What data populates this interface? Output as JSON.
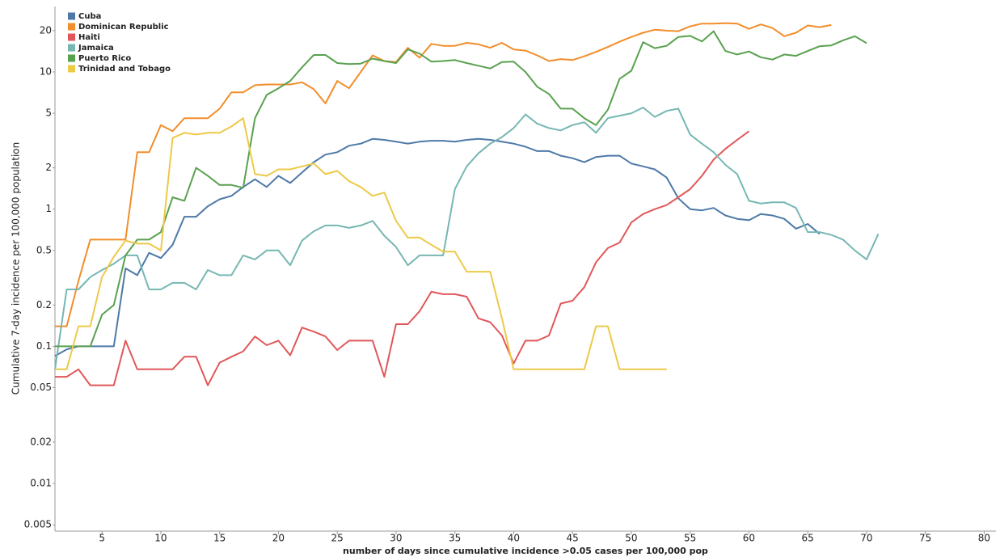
{
  "chart_data": {
    "type": "line",
    "y_label": "Cumulative 7-day incidence per 100,000 population",
    "x_label": "number of days since cumulative incidence >0.05 cases per 100,000 pop",
    "y_scale": "log",
    "grid": false,
    "legend": "top-left",
    "xlim": [
      1,
      81
    ],
    "xticks": [
      5,
      10,
      15,
      20,
      25,
      30,
      35,
      40,
      45,
      50,
      55,
      60,
      65,
      70,
      75,
      80
    ],
    "ylim": [
      0.0045,
      30
    ],
    "yticks": [
      0.005,
      0.01,
      0.02,
      0.05,
      0.1,
      0.2,
      0.5,
      1,
      2,
      5,
      10,
      20
    ],
    "x": [
      1,
      2,
      3,
      4,
      5,
      6,
      7,
      8,
      9,
      10,
      11,
      12,
      13,
      14,
      15,
      16,
      17,
      18,
      19,
      20,
      21,
      22,
      23,
      24,
      25,
      26,
      27,
      28,
      29,
      30,
      31,
      32,
      33,
      34,
      35,
      36,
      37,
      38,
      39,
      40,
      41,
      42,
      43,
      44,
      45,
      46,
      47,
      48,
      49,
      50,
      51,
      52,
      53,
      54,
      55,
      56,
      57,
      58,
      59,
      60,
      61,
      62,
      63,
      64,
      65,
      66,
      67,
      68,
      69,
      70,
      71
    ],
    "series": [
      {
        "name": "Cuba",
        "color": "#4e79a7",
        "values": [
          0.085,
          0.095,
          0.1,
          0.1,
          0.1,
          0.1,
          0.37,
          0.33,
          0.48,
          0.44,
          0.55,
          0.88,
          0.88,
          1.05,
          1.18,
          1.25,
          1.45,
          1.65,
          1.45,
          1.75,
          1.55,
          1.85,
          2.2,
          2.5,
          2.6,
          2.9,
          3.0,
          3.25,
          3.2,
          3.1,
          3.0,
          3.1,
          3.15,
          3.15,
          3.1,
          3.2,
          3.25,
          3.2,
          3.1,
          3.0,
          2.85,
          2.65,
          2.65,
          2.45,
          2.35,
          2.2,
          2.4,
          2.45,
          2.45,
          2.15,
          2.05,
          1.95,
          1.7,
          1.2,
          1.0,
          0.98,
          1.02,
          0.9,
          0.85,
          0.83,
          0.92,
          0.9,
          0.85,
          0.72,
          0.78,
          0.66,
          null,
          null,
          null,
          null,
          null
        ]
      },
      {
        "name": "Dominican Republic",
        "color": "#f28e2b",
        "values": [
          0.14,
          0.14,
          0.3,
          0.6,
          0.6,
          0.6,
          0.6,
          2.6,
          2.6,
          4.1,
          3.7,
          4.6,
          4.6,
          4.6,
          5.4,
          7.1,
          7.1,
          8.0,
          8.1,
          8.1,
          8.1,
          8.4,
          7.5,
          5.9,
          8.6,
          7.6,
          10.0,
          13.2,
          12.0,
          11.8,
          15.0,
          12.7,
          16.0,
          15.5,
          15.5,
          16.3,
          15.9,
          15.0,
          16.3,
          14.6,
          14.3,
          13.2,
          12.0,
          12.4,
          12.2,
          13.0,
          14.0,
          15.2,
          16.6,
          18.0,
          19.3,
          20.3,
          20.0,
          19.8,
          21.5,
          22.5,
          22.5,
          22.7,
          22.5,
          20.6,
          22.2,
          20.9,
          18.2,
          19.3,
          21.8,
          21.2,
          22.0,
          null,
          null,
          null,
          null
        ]
      },
      {
        "name": "Haiti",
        "color": "#e15759",
        "values": [
          0.06,
          0.06,
          0.068,
          0.052,
          0.052,
          0.052,
          0.11,
          0.068,
          0.068,
          0.068,
          0.068,
          0.084,
          0.084,
          0.052,
          0.076,
          0.084,
          0.092,
          0.118,
          0.102,
          0.11,
          0.086,
          0.137,
          0.128,
          0.118,
          0.094,
          0.11,
          0.11,
          0.11,
          0.06,
          0.145,
          0.145,
          0.18,
          0.25,
          0.24,
          0.24,
          0.23,
          0.16,
          0.15,
          0.12,
          0.075,
          0.11,
          0.11,
          0.12,
          0.205,
          0.215,
          0.27,
          0.41,
          0.52,
          0.57,
          0.8,
          0.92,
          1.0,
          1.07,
          1.22,
          1.4,
          1.75,
          2.3,
          2.75,
          3.2,
          3.7,
          null,
          null,
          null,
          null,
          null,
          null,
          null,
          null,
          null,
          null,
          null
        ]
      },
      {
        "name": "Jamaica",
        "color": "#76b7b2",
        "values": [
          0.068,
          0.26,
          0.26,
          0.32,
          0.36,
          0.4,
          0.46,
          0.46,
          0.26,
          0.26,
          0.29,
          0.29,
          0.26,
          0.36,
          0.33,
          0.33,
          0.46,
          0.43,
          0.5,
          0.5,
          0.39,
          0.59,
          0.69,
          0.76,
          0.76,
          0.73,
          0.76,
          0.82,
          0.64,
          0.53,
          0.39,
          0.46,
          0.46,
          0.46,
          1.4,
          2.05,
          2.55,
          3.0,
          3.35,
          3.9,
          4.9,
          4.2,
          3.9,
          3.75,
          4.1,
          4.3,
          3.6,
          4.6,
          4.8,
          5.0,
          5.5,
          4.7,
          5.2,
          5.4,
          3.5,
          3.0,
          2.6,
          2.1,
          1.8,
          1.15,
          1.1,
          1.12,
          1.12,
          1.02,
          0.68,
          0.68,
          0.65,
          0.6,
          0.5,
          0.43,
          0.66
        ]
      },
      {
        "name": "Puerto Rico",
        "color": "#59a14f",
        "values": [
          0.1,
          0.1,
          0.1,
          0.1,
          0.17,
          0.2,
          0.46,
          0.6,
          0.6,
          0.68,
          1.22,
          1.15,
          2.0,
          1.75,
          1.5,
          1.5,
          1.43,
          4.6,
          6.8,
          7.6,
          8.6,
          10.8,
          13.3,
          13.3,
          11.6,
          11.4,
          11.5,
          12.5,
          12.0,
          11.6,
          14.6,
          13.6,
          11.9,
          12.0,
          12.2,
          11.6,
          11.1,
          10.6,
          11.8,
          11.9,
          10.0,
          7.8,
          6.9,
          5.4,
          5.4,
          4.6,
          4.1,
          5.3,
          8.9,
          10.2,
          16.5,
          14.9,
          15.5,
          18.0,
          18.3,
          16.7,
          19.8,
          14.2,
          13.4,
          14.1,
          12.8,
          12.3,
          13.4,
          13.1,
          14.2,
          15.4,
          15.6,
          17.0,
          18.2,
          16.2,
          null
        ]
      },
      {
        "name": "Trinidad and Tobago",
        "color": "#edc948",
        "values": [
          0.068,
          0.068,
          0.14,
          0.14,
          0.32,
          0.45,
          0.59,
          0.56,
          0.56,
          0.5,
          3.3,
          3.6,
          3.5,
          3.6,
          3.6,
          4.0,
          4.6,
          1.8,
          1.75,
          1.95,
          1.95,
          2.05,
          2.15,
          1.8,
          1.9,
          1.6,
          1.45,
          1.25,
          1.32,
          0.82,
          0.62,
          0.62,
          0.55,
          0.49,
          0.49,
          0.35,
          0.35,
          0.35,
          0.16,
          0.068,
          0.068,
          0.068,
          0.068,
          0.068,
          0.068,
          0.068,
          0.14,
          0.14,
          0.068,
          0.068,
          0.068,
          0.068,
          0.068,
          null,
          null,
          null,
          null,
          null,
          null,
          null,
          null,
          null,
          null,
          null,
          null,
          null,
          null,
          null,
          null,
          null,
          null
        ]
      }
    ]
  }
}
